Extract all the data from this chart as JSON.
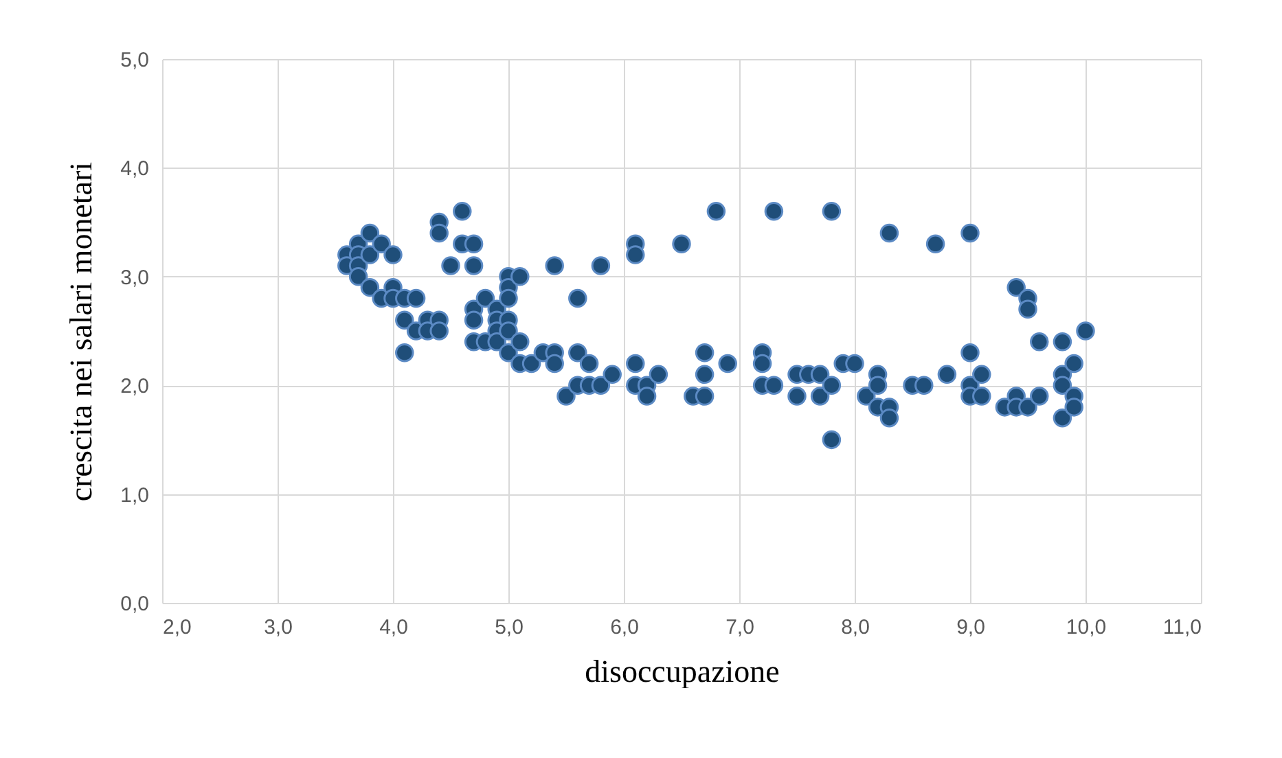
{
  "chart_data": {
    "type": "scatter",
    "xlabel": "disoccupazione",
    "ylabel": "crescita nei salari monetari",
    "marker": "circle",
    "grid": true,
    "legend": false,
    "xlim": [
      2,
      11
    ],
    "ylim": [
      0,
      5
    ],
    "xticks": [
      {
        "value": 2,
        "label": "2,0"
      },
      {
        "value": 3,
        "label": "3,0"
      },
      {
        "value": 4,
        "label": "4,0"
      },
      {
        "value": 5,
        "label": "5,0"
      },
      {
        "value": 6,
        "label": "6,0"
      },
      {
        "value": 7,
        "label": "7,0"
      },
      {
        "value": 8,
        "label": "8,0"
      },
      {
        "value": 9,
        "label": "9,0"
      },
      {
        "value": 10,
        "label": "10,0"
      },
      {
        "value": 11,
        "label": "11,0"
      }
    ],
    "yticks": [
      {
        "value": 0,
        "label": "0,0"
      },
      {
        "value": 1,
        "label": "1,0"
      },
      {
        "value": 2,
        "label": "2,0"
      },
      {
        "value": 3,
        "label": "3,0"
      },
      {
        "value": 4,
        "label": "4,0"
      },
      {
        "value": 5,
        "label": "5,0"
      }
    ],
    "series": [
      {
        "color": "#1f4e79",
        "x": [
          3.6,
          3.6,
          3.7,
          3.7,
          3.7,
          3.7,
          3.8,
          3.8,
          3.8,
          3.9,
          3.9,
          4.0,
          4.0,
          4.0,
          4.1,
          4.1,
          4.1,
          4.2,
          4.2,
          4.3,
          4.3,
          4.4,
          4.4,
          4.4,
          4.4,
          4.5,
          4.6,
          4.6,
          4.7,
          4.7,
          4.7,
          4.7,
          4.7,
          4.8,
          4.8,
          4.9,
          4.9,
          4.9,
          4.9,
          5.0,
          5.0,
          5.0,
          5.0,
          5.0,
          5.0,
          5.1,
          5.1,
          5.1,
          5.2,
          5.3,
          5.4,
          5.4,
          5.4,
          5.5,
          5.6,
          5.6,
          5.6,
          5.7,
          5.7,
          5.8,
          5.8,
          5.9,
          6.1,
          6.1,
          6.1,
          6.1,
          6.2,
          6.2,
          6.3,
          6.5,
          6.6,
          6.7,
          6.7,
          6.7,
          6.8,
          6.9,
          7.2,
          7.2,
          7.2,
          7.3,
          7.3,
          7.5,
          7.5,
          7.6,
          7.7,
          7.7,
          7.8,
          7.8,
          7.8,
          7.9,
          8.0,
          8.1,
          8.2,
          8.2,
          8.2,
          8.3,
          8.3,
          8.3,
          8.5,
          8.6,
          8.7,
          8.8,
          9.0,
          9.0,
          9.0,
          9.0,
          9.1,
          9.1,
          9.3,
          9.4,
          9.4,
          9.4,
          9.5,
          9.5,
          9.5,
          9.6,
          9.6,
          9.8,
          9.8,
          9.8,
          9.8,
          9.9,
          9.9,
          9.9,
          10.0
        ],
        "values": [
          3.2,
          3.1,
          3.3,
          3.2,
          3.1,
          3.0,
          3.4,
          3.2,
          2.9,
          3.3,
          2.8,
          3.2,
          2.9,
          2.8,
          2.8,
          2.6,
          2.3,
          2.8,
          2.5,
          2.6,
          2.5,
          3.5,
          3.4,
          2.6,
          2.5,
          3.1,
          3.6,
          3.3,
          3.3,
          3.1,
          2.7,
          2.6,
          2.4,
          2.8,
          2.4,
          2.7,
          2.6,
          2.5,
          2.4,
          3.0,
          2.9,
          2.8,
          2.6,
          2.5,
          2.3,
          3.0,
          2.4,
          2.2,
          2.2,
          2.3,
          3.1,
          2.3,
          2.2,
          1.9,
          2.8,
          2.3,
          2.0,
          2.2,
          2.0,
          3.1,
          2.0,
          2.1,
          3.3,
          3.2,
          2.2,
          2.0,
          2.0,
          1.9,
          2.1,
          3.3,
          1.9,
          2.3,
          2.1,
          1.9,
          3.6,
          2.2,
          2.3,
          2.2,
          2.0,
          3.6,
          2.0,
          2.1,
          1.9,
          2.1,
          2.1,
          1.9,
          3.6,
          2.0,
          1.5,
          2.2,
          2.2,
          1.9,
          2.1,
          2.0,
          1.8,
          1.8,
          1.7,
          3.4,
          2.0,
          2.0,
          3.3,
          2.1,
          3.4,
          2.3,
          2.0,
          1.9,
          2.1,
          1.9,
          1.8,
          2.9,
          1.9,
          1.8,
          2.8,
          2.7,
          1.8,
          2.4,
          1.9,
          2.4,
          2.1,
          2.0,
          1.7,
          2.2,
          1.9,
          1.8,
          2.5
        ]
      }
    ]
  }
}
